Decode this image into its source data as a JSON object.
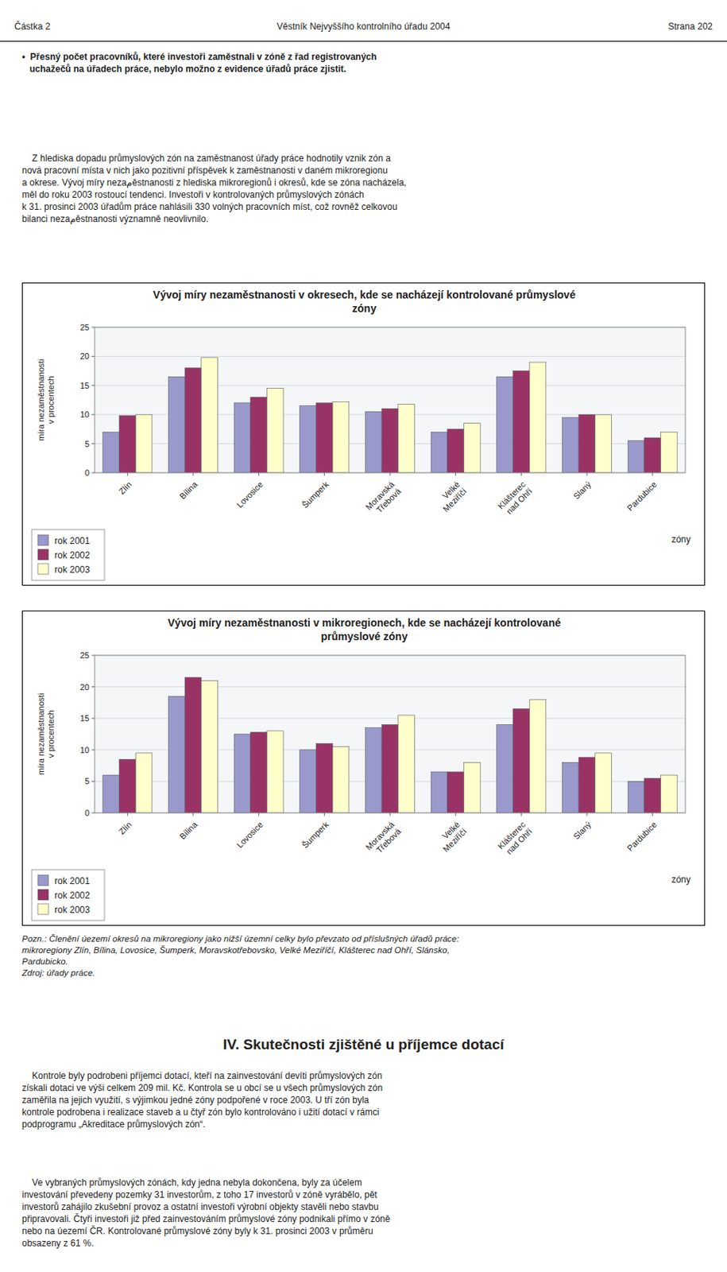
{
  "page": {
    "header_left": "Částka 2",
    "header_center": "Věstník Nejvyššího kontrolního úřadu 2004",
    "header_right": "Strana 202",
    "bullet": "•  Přesný počet pracovníků, které investoři zaměstnali v zóně z řad registrovaných\n   uchažečů na úřadech práce, nebylo možno z evidence úřadů práce zjistit.",
    "paragraph": "    Z hlediska dopadu průmyslových zón na zaměstnanost úřady práce hodnotily vznik zón a\nnová pracovní místa v nich jako pozitivní příspěvek k zaměstnanosti v daném mikroregionu\na okrese. Vývoj míry nezaمěstnanosti z hlediska mikroregionů i okresů, kde se zóna nacházela,\nměl do roku 2003 rostoucí tendenci. Investoři v kontrolovaných průmyslových zónách\nk 31. prosinci 2003 úřadům práce nahlásili 330 volných pracovních míst, což rovněž celkovou\nbilanci nezaمěstnanosti významně neovlivnilo.",
    "notes": "Pozn.: Členění úezemí okresů na mikroregiony jako nižší územní celky bylo převzato od příslušných úřadů práce:\nmikroregiony Zlín, Bílina, Lovosice, Šumperk, Moravskotřebovsko, Velké Meziříčí, Klášterec nad Ohří, Slánsko,\nPardubicko.\nZdroj: úřady práce.",
    "section_title": "IV. Skutečnosti zjištěné u příjemce dotací",
    "body1": "    Kontrole byly podrobeni příjemci dotací, kteří na zainvestování devíti průmyslových zón\nzískali dotaci ve výši celkem 209 mil. Kč. Kontrola se u obcí se u všech průmyslových zón\nzaměřila na jejich využití, s výjimkou jedné zóny podpořené v roce 2003. U tří zón byla\nkontrole podrobena i realizace staveb a u čtyř zón bylo kontrolováno i užití dotací v rámci\npodprogramu „Akreditace průmyslových zón“.",
    "body2": "    Ve vybraných průmyslových zónách, kdy jedna nebyla dokončena, byly za účelem\ninvestování převedeny pozemky 31 investorům, z toho 17 investorů v zóně vyrábělo, pět\ninvestorů zahájilo zkušební provoz a ostatní investoři výrobní objekty stavěli nebo stavbu\npřipravovali. Čtyři investoři již před zainvestováním průmyslové zóny podnikali přímo v zóně\nnebo na úezemí ČR. Kontrolované průmyslové zóny byly k 31. prosinci 2003 v průměru\nobsazeny z 61 %."
  },
  "chart_data": [
    {
      "type": "bar",
      "title": "Vývoj míry nezaměstnanosti v okresech, kde se nacházejí kontrolované průmyslové\nzóny",
      "x_label": "zóny",
      "y_label": "míra nezaměstnanosti\nv procentech",
      "categories": [
        "Zlín",
        "Bílina",
        "Lovosice",
        "Šumperk",
        "Moravská\nTřebová",
        "Velké\nMeziříčí",
        "Klášterec\nnad Ohří",
        "Slaný",
        "Pardubice"
      ],
      "series": [
        {
          "name": "rok 2001",
          "color": "#9999cc",
          "values": [
            7.0,
            16.5,
            12.0,
            11.5,
            10.5,
            7.0,
            16.5,
            9.5,
            5.5
          ]
        },
        {
          "name": "rok 2002",
          "color": "#993366",
          "values": [
            9.8,
            18.0,
            13.0,
            12.0,
            11.0,
            7.5,
            17.5,
            10.0,
            6.0
          ]
        },
        {
          "name": "rok 2003",
          "color": "#ffffcc",
          "values": [
            10.0,
            19.8,
            14.5,
            12.2,
            11.8,
            8.5,
            19.0,
            10.0,
            7.0
          ]
        }
      ],
      "ylim": [
        0,
        25
      ],
      "yticks": [
        0,
        5,
        10,
        15,
        20,
        25
      ],
      "grid": true,
      "legend": "lower left"
    },
    {
      "type": "bar",
      "title": "Vývoj míry nezaměstnanosti v mikroregionech, kde se nacházejí kontrolované\nprůmyslové zóny",
      "x_label": "zóny",
      "y_label": "míra nezaměstnanosti\nv procentech",
      "categories": [
        "Zlín",
        "Bílina",
        "Lovosice",
        "Šumperk",
        "Moravská\nTřebová",
        "Velké\nMeziříčí",
        "Klášterec\nnad Ohří",
        "Slaný",
        "Pardubice"
      ],
      "series": [
        {
          "name": "rok 2001",
          "color": "#9999cc",
          "values": [
            6.0,
            18.5,
            12.5,
            10.0,
            13.5,
            6.5,
            14.0,
            8.0,
            5.0
          ]
        },
        {
          "name": "rok 2002",
          "color": "#993366",
          "values": [
            8.5,
            21.5,
            12.8,
            11.0,
            14.0,
            6.5,
            16.5,
            8.8,
            5.5
          ]
        },
        {
          "name": "rok 2003",
          "color": "#ffffcc",
          "values": [
            9.5,
            21.0,
            13.0,
            10.5,
            15.5,
            8.0,
            18.0,
            9.5,
            6.0
          ]
        }
      ],
      "ylim": [
        0,
        25
      ],
      "yticks": [
        0,
        5,
        10,
        15,
        20,
        25
      ],
      "grid": true,
      "legend": "lower left"
    }
  ]
}
